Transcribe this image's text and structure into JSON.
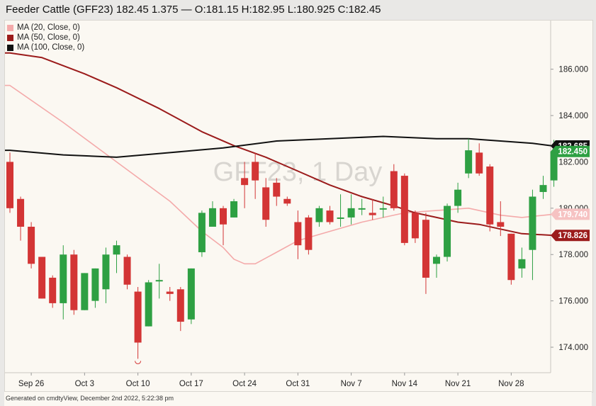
{
  "header": {
    "title": "Feeder Cattle (GFF23) 182.45 1.375 — O:181.15 H:182.95 L:180.925 C:182.45"
  },
  "legend": [
    {
      "label": "MA (20, Close, 0)",
      "color": "#f4aaaa"
    },
    {
      "label": "MA (50, Close, 0)",
      "color": "#9b1b1b"
    },
    {
      "label": "MA (100, Close, 0)",
      "color": "#111111"
    }
  ],
  "watermark": "GFF23, 1 Day",
  "footer": {
    "text": "Generated on cmdtyView, December 2nd 2022, 5:22:38 pm"
  },
  "chart_data": {
    "type": "candlestick",
    "title": "Feeder Cattle (GFF23)",
    "ylim": [
      172.9,
      188.1
    ],
    "y_ticks": [
      "186.000",
      "184.000",
      "182.000",
      "180.000",
      "178.000",
      "176.000",
      "174.000"
    ],
    "x_tick_labels": [
      "Sep 26",
      "Oct 3",
      "Oct 10",
      "Oct 17",
      "Oct 24",
      "Oct 31",
      "Nov 7",
      "Nov 14",
      "Nov 21",
      "Nov 28"
    ],
    "colors": {
      "up": "#2ea043",
      "down": "#d33535"
    },
    "candles": [
      {
        "o": 182.0,
        "h": 182.4,
        "l": 179.8,
        "c": 180.0
      },
      {
        "o": 180.4,
        "h": 180.5,
        "l": 178.6,
        "c": 179.2
      },
      {
        "o": 179.2,
        "h": 179.4,
        "l": 177.4,
        "c": 177.6
      },
      {
        "o": 177.9,
        "h": 177.9,
        "l": 176.1,
        "c": 176.1
      },
      {
        "o": 177.0,
        "h": 177.1,
        "l": 175.7,
        "c": 175.9
      },
      {
        "o": 175.9,
        "h": 178.4,
        "l": 175.2,
        "c": 178.0
      },
      {
        "o": 178.0,
        "h": 178.2,
        "l": 175.4,
        "c": 175.6
      },
      {
        "o": 175.6,
        "h": 177.2,
        "l": 175.6,
        "c": 177.2
      },
      {
        "o": 176.0,
        "h": 177.4,
        "l": 175.7,
        "c": 177.4
      },
      {
        "o": 176.5,
        "h": 178.3,
        "l": 175.9,
        "c": 178.0
      },
      {
        "o": 178.0,
        "h": 178.6,
        "l": 177.2,
        "c": 178.4
      },
      {
        "o": 177.9,
        "h": 178.0,
        "l": 176.5,
        "c": 176.7
      },
      {
        "o": 176.4,
        "h": 176.6,
        "l": 173.5,
        "c": 174.2
      },
      {
        "o": 174.9,
        "h": 176.9,
        "l": 174.9,
        "c": 176.8
      },
      {
        "o": 176.9,
        "h": 177.6,
        "l": 176.1,
        "c": 176.9
      },
      {
        "o": 176.4,
        "h": 176.6,
        "l": 176.0,
        "c": 176.3
      },
      {
        "o": 176.5,
        "h": 176.6,
        "l": 174.7,
        "c": 175.1
      },
      {
        "o": 175.2,
        "h": 177.4,
        "l": 175.0,
        "c": 177.4
      },
      {
        "o": 178.1,
        "h": 179.9,
        "l": 177.9,
        "c": 179.8
      },
      {
        "o": 179.2,
        "h": 180.3,
        "l": 179.2,
        "c": 180.0
      },
      {
        "o": 180.0,
        "h": 180.1,
        "l": 178.4,
        "c": 179.3
      },
      {
        "o": 179.6,
        "h": 180.4,
        "l": 179.6,
        "c": 180.3
      },
      {
        "o": 181.3,
        "h": 182.0,
        "l": 180.0,
        "c": 181.0
      },
      {
        "o": 182.0,
        "h": 182.4,
        "l": 180.4,
        "c": 181.2
      },
      {
        "o": 180.9,
        "h": 181.3,
        "l": 179.2,
        "c": 179.5
      },
      {
        "o": 181.1,
        "h": 181.3,
        "l": 180.1,
        "c": 180.5
      },
      {
        "o": 180.4,
        "h": 180.5,
        "l": 180.1,
        "c": 180.2
      },
      {
        "o": 179.4,
        "h": 179.9,
        "l": 177.8,
        "c": 178.4
      },
      {
        "o": 179.6,
        "h": 179.7,
        "l": 178.0,
        "c": 178.2
      },
      {
        "o": 179.4,
        "h": 180.1,
        "l": 179.2,
        "c": 180.0
      },
      {
        "o": 179.9,
        "h": 180.1,
        "l": 179.3,
        "c": 179.4
      },
      {
        "o": 179.6,
        "h": 180.6,
        "l": 179.2,
        "c": 179.6
      },
      {
        "o": 179.6,
        "h": 180.6,
        "l": 179.3,
        "c": 180.0
      },
      {
        "o": 180.0,
        "h": 180.4,
        "l": 179.7,
        "c": 180.0
      },
      {
        "o": 179.8,
        "h": 180.4,
        "l": 179.5,
        "c": 179.7
      },
      {
        "o": 180.0,
        "h": 180.5,
        "l": 179.6,
        "c": 180.0
      },
      {
        "o": 181.6,
        "h": 181.9,
        "l": 179.9,
        "c": 180.0
      },
      {
        "o": 181.4,
        "h": 181.5,
        "l": 178.4,
        "c": 178.5
      },
      {
        "o": 179.8,
        "h": 179.9,
        "l": 178.5,
        "c": 178.7
      },
      {
        "o": 179.5,
        "h": 179.8,
        "l": 176.3,
        "c": 177.0
      },
      {
        "o": 177.6,
        "h": 178.0,
        "l": 177.0,
        "c": 177.9
      },
      {
        "o": 177.9,
        "h": 180.2,
        "l": 177.7,
        "c": 180.1
      },
      {
        "o": 180.1,
        "h": 181.1,
        "l": 179.8,
        "c": 180.8
      },
      {
        "o": 181.5,
        "h": 183.0,
        "l": 181.3,
        "c": 182.5
      },
      {
        "o": 182.4,
        "h": 182.8,
        "l": 181.4,
        "c": 181.5
      },
      {
        "o": 181.8,
        "h": 181.9,
        "l": 179.0,
        "c": 179.3
      },
      {
        "o": 179.4,
        "h": 180.3,
        "l": 178.8,
        "c": 179.2
      },
      {
        "o": 178.9,
        "h": 178.9,
        "l": 176.7,
        "c": 176.9
      },
      {
        "o": 177.4,
        "h": 178.3,
        "l": 177.0,
        "c": 177.8
      },
      {
        "o": 178.2,
        "h": 180.8,
        "l": 176.9,
        "c": 180.5
      },
      {
        "o": 180.7,
        "h": 181.4,
        "l": 180.4,
        "c": 181.0
      },
      {
        "o": 181.2,
        "h": 182.95,
        "l": 180.925,
        "c": 182.45
      }
    ],
    "moving_averages": [
      {
        "name": "MA (20, Close, 0)",
        "color": "#f4aaaa",
        "last_label": "179.740",
        "points": [
          [
            0,
            185.3
          ],
          [
            5,
            183.7
          ],
          [
            10,
            182.0
          ],
          [
            15,
            180.3
          ],
          [
            18,
            179.0
          ],
          [
            20,
            178.3
          ],
          [
            21,
            177.8
          ],
          [
            22,
            177.6
          ],
          [
            23,
            177.6
          ],
          [
            25,
            178.1
          ],
          [
            27,
            178.6
          ],
          [
            30,
            179.0
          ],
          [
            33,
            179.4
          ],
          [
            37,
            179.8
          ],
          [
            40,
            179.9
          ],
          [
            43,
            180.0
          ],
          [
            46,
            179.7
          ],
          [
            48,
            179.6
          ],
          [
            51,
            179.74
          ]
        ]
      },
      {
        "name": "MA (50, Close, 0)",
        "color": "#9b1b1b",
        "last_label": "178.826",
        "points": [
          [
            0,
            186.7
          ],
          [
            3,
            186.5
          ],
          [
            7,
            185.8
          ],
          [
            10,
            185.2
          ],
          [
            14,
            184.3
          ],
          [
            18,
            183.3
          ],
          [
            21,
            182.7
          ],
          [
            24,
            182.2
          ],
          [
            27,
            181.6
          ],
          [
            30,
            181.0
          ],
          [
            33,
            180.5
          ],
          [
            36,
            180.1
          ],
          [
            38,
            179.8
          ],
          [
            40,
            179.6
          ],
          [
            42,
            179.4
          ],
          [
            44,
            179.3
          ],
          [
            46,
            179.1
          ],
          [
            48,
            178.9
          ],
          [
            51,
            178.826
          ]
        ]
      },
      {
        "name": "MA (100, Close, 0)",
        "color": "#111111",
        "last_label": "182.685",
        "points": [
          [
            0,
            182.5
          ],
          [
            5,
            182.3
          ],
          [
            10,
            182.2
          ],
          [
            15,
            182.4
          ],
          [
            20,
            182.6
          ],
          [
            25,
            182.9
          ],
          [
            30,
            183.0
          ],
          [
            35,
            183.1
          ],
          [
            40,
            183.0
          ],
          [
            43,
            183.0
          ],
          [
            46,
            182.9
          ],
          [
            49,
            182.8
          ],
          [
            51,
            182.685
          ]
        ]
      }
    ],
    "last_price": {
      "value": 182.45,
      "label": "182.450",
      "color": "#2ea043"
    }
  }
}
